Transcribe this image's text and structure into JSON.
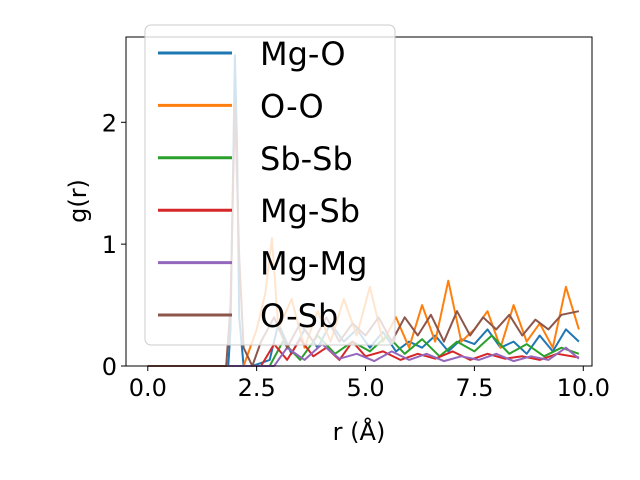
{
  "chart_data": {
    "type": "line",
    "xlabel": "r (Å)",
    "ylabel": "g(r)",
    "xlim": [
      -0.5,
      10.2
    ],
    "ylim": [
      0,
      2.7
    ],
    "xticks": [
      0.0,
      2.5,
      5.0,
      7.5,
      10.0
    ],
    "xtick_labels": [
      "0.0",
      "2.5",
      "5.0",
      "7.5",
      "10.0"
    ],
    "yticks": [
      0,
      1,
      2
    ],
    "ytick_labels": [
      "0",
      "1",
      "2"
    ],
    "grid": false,
    "legend_position": "top-left",
    "series": [
      {
        "name": "Mg-O",
        "color": "#1f77b4",
        "x": [
          0.0,
          1.85,
          1.9,
          2.0,
          2.05,
          2.1,
          2.2,
          2.4,
          2.8,
          3.0,
          3.3,
          3.6,
          3.9,
          4.2,
          4.5,
          4.8,
          5.1,
          5.4,
          5.7,
          6.0,
          6.3,
          6.6,
          6.9,
          7.2,
          7.5,
          7.8,
          8.1,
          8.4,
          8.7,
          9.0,
          9.3,
          9.6,
          9.9
        ],
        "y": [
          0.0,
          0.0,
          0.3,
          2.55,
          1.8,
          0.4,
          0.0,
          0.0,
          0.05,
          0.35,
          0.1,
          0.3,
          0.15,
          0.35,
          0.2,
          0.3,
          0.15,
          0.28,
          0.12,
          0.2,
          0.15,
          0.25,
          0.12,
          0.22,
          0.18,
          0.3,
          0.15,
          0.2,
          0.1,
          0.25,
          0.12,
          0.3,
          0.2
        ]
      },
      {
        "name": "O-O",
        "color": "#ff7f0e",
        "x": [
          0.0,
          2.2,
          2.5,
          2.7,
          2.85,
          3.0,
          3.3,
          3.6,
          3.9,
          4.2,
          4.5,
          4.8,
          5.1,
          5.4,
          5.7,
          6.0,
          6.3,
          6.6,
          6.9,
          7.2,
          7.5,
          7.8,
          8.1,
          8.4,
          8.7,
          9.0,
          9.3,
          9.6,
          9.9
        ],
        "y": [
          0.0,
          0.0,
          0.3,
          0.6,
          1.05,
          0.3,
          0.55,
          0.15,
          0.45,
          0.2,
          0.55,
          0.25,
          0.65,
          0.2,
          0.4,
          0.15,
          0.5,
          0.2,
          0.7,
          0.2,
          0.3,
          0.45,
          0.15,
          0.5,
          0.2,
          0.35,
          0.15,
          0.65,
          0.3
        ]
      },
      {
        "name": "Sb-Sb",
        "color": "#2ca02c",
        "x": [
          0.0,
          2.8,
          3.1,
          3.5,
          3.9,
          4.3,
          4.7,
          5.1,
          5.5,
          5.9,
          6.3,
          6.7,
          7.1,
          7.5,
          7.9,
          8.3,
          8.7,
          9.1,
          9.5,
          9.9
        ],
        "y": [
          0.0,
          0.0,
          0.2,
          0.05,
          0.25,
          0.1,
          0.2,
          0.12,
          0.25,
          0.1,
          0.22,
          0.08,
          0.2,
          0.12,
          0.25,
          0.1,
          0.18,
          0.08,
          0.15,
          0.1
        ]
      },
      {
        "name": "Mg-Sb",
        "color": "#d62728",
        "x": [
          0.0,
          2.6,
          2.9,
          3.2,
          3.5,
          3.8,
          4.1,
          4.4,
          4.7,
          5.0,
          5.4,
          5.8,
          6.2,
          6.6,
          7.0,
          7.4,
          7.8,
          8.2,
          8.6,
          9.0,
          9.4,
          9.9
        ],
        "y": [
          0.0,
          0.0,
          0.18,
          0.05,
          0.22,
          0.08,
          0.15,
          0.05,
          0.2,
          0.08,
          0.12,
          0.05,
          0.1,
          0.06,
          0.12,
          0.05,
          0.1,
          0.06,
          0.08,
          0.05,
          0.1,
          0.07
        ]
      },
      {
        "name": "Mg-Mg",
        "color": "#9467bd",
        "x": [
          0.0,
          2.9,
          3.2,
          3.6,
          4.0,
          4.4,
          4.8,
          5.2,
          5.6,
          6.0,
          6.4,
          6.8,
          7.2,
          7.6,
          8.0,
          8.4,
          8.8,
          9.2,
          9.6,
          9.9
        ],
        "y": [
          0.0,
          0.0,
          0.15,
          0.05,
          0.18,
          0.06,
          0.1,
          0.04,
          0.12,
          0.05,
          0.1,
          0.04,
          0.08,
          0.05,
          0.1,
          0.04,
          0.08,
          0.05,
          0.15,
          0.06
        ]
      },
      {
        "name": "O-Sb",
        "color": "#8c564b",
        "x": [
          0.0,
          1.8,
          1.9,
          2.0,
          2.1,
          2.2,
          2.4,
          2.6,
          2.9,
          3.2,
          3.5,
          3.8,
          4.1,
          4.4,
          4.7,
          5.0,
          5.3,
          5.6,
          5.9,
          6.2,
          6.5,
          6.8,
          7.1,
          7.4,
          7.7,
          8.0,
          8.3,
          8.6,
          8.9,
          9.2,
          9.5,
          9.9
        ],
        "y": [
          0.0,
          0.0,
          0.5,
          2.15,
          0.9,
          0.15,
          0.0,
          0.2,
          0.4,
          0.15,
          0.35,
          0.2,
          0.4,
          0.2,
          0.35,
          0.25,
          0.4,
          0.2,
          0.4,
          0.25,
          0.42,
          0.2,
          0.45,
          0.25,
          0.4,
          0.3,
          0.42,
          0.25,
          0.38,
          0.3,
          0.42,
          0.45
        ]
      }
    ]
  }
}
